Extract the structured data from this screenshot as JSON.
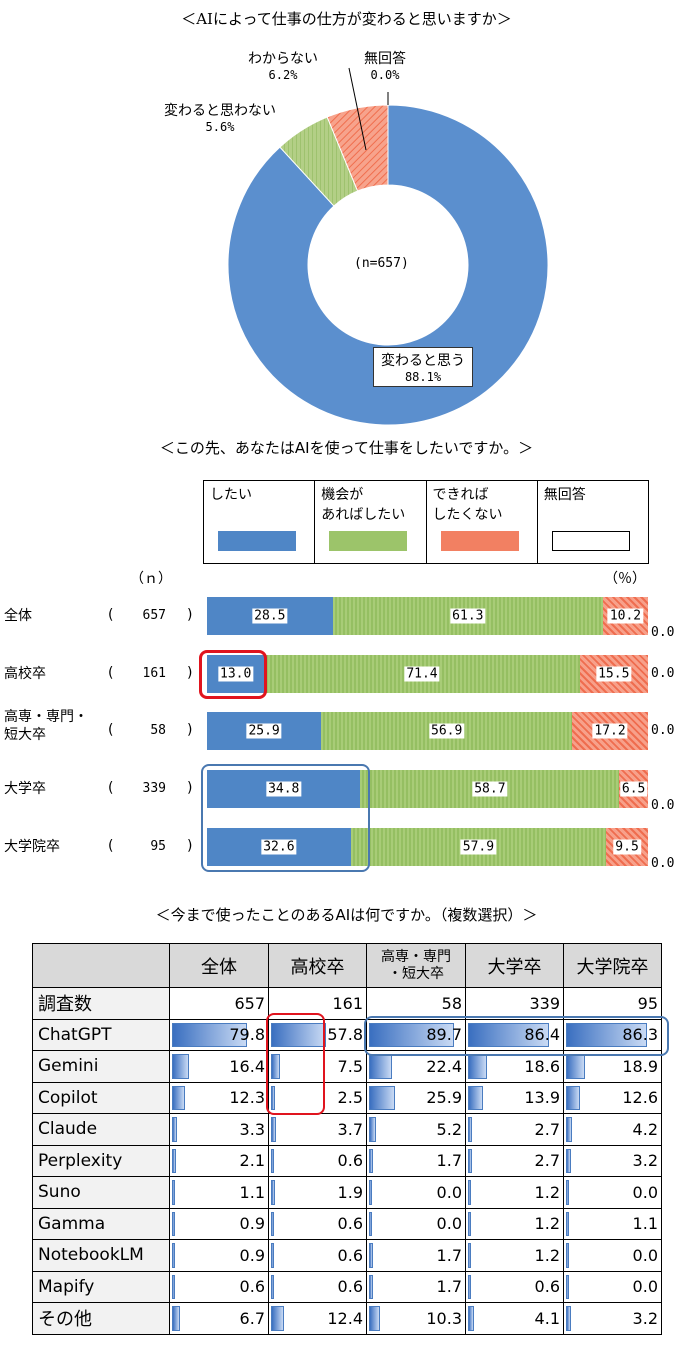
{
  "donut": {
    "title": "＜AIによって仕事の仕方が変わると思いますか＞",
    "center": "(n=657)",
    "slices": [
      {
        "label": "変わると思う",
        "pct": "88.1%",
        "value": 88.1,
        "color": "#5b8fce"
      },
      {
        "label": "変わると思わない",
        "pct": "5.6%",
        "value": 5.6,
        "color": "#a9c97a"
      },
      {
        "label": "わからない",
        "pct": "6.2%",
        "value": 6.2,
        "color": "#f28a6e"
      },
      {
        "label": "無回答",
        "pct": "0.0%",
        "value": 0.0,
        "color": "#ffffff"
      }
    ]
  },
  "stacked": {
    "title": "＜この先、あなたはAIを使って仕事をしたいですか。＞",
    "n_header": "（ｎ）",
    "pct_header": "（％）",
    "legend": [
      "したい",
      "機会があればしたい",
      "できればしたくない",
      "無回答"
    ],
    "legend_lines": [
      [
        "したい"
      ],
      [
        "機会が",
        "あればしたい"
      ],
      [
        "できれば",
        "したくない"
      ],
      [
        "無回答"
      ]
    ],
    "colors": [
      "#4f86c6",
      "#9cc46a",
      "#f28062",
      "#ffffff"
    ],
    "rows": [
      {
        "label": [
          "全体"
        ],
        "n": "657",
        "values": [
          28.5,
          61.3,
          10.2,
          0.0
        ],
        "texts": [
          "28.5",
          "61.3",
          "10.2",
          "0.0"
        ]
      },
      {
        "label": [
          "高校卒"
        ],
        "n": "161",
        "values": [
          13.0,
          71.4,
          15.5,
          0.0
        ],
        "texts": [
          "13.0",
          "71.4",
          "15.5",
          "0.0"
        ]
      },
      {
        "label": [
          "高専・専門・",
          "短大卒"
        ],
        "n": "58",
        "values": [
          25.9,
          56.9,
          17.2,
          0.0
        ],
        "texts": [
          "25.9",
          "56.9",
          "17.2",
          "0.0"
        ]
      },
      {
        "label": [
          "大学卒"
        ],
        "n": "339",
        "values": [
          34.8,
          58.7,
          6.5,
          0.0
        ],
        "texts": [
          "34.8",
          "58.7",
          "6.5",
          "0.0"
        ]
      },
      {
        "label": [
          "大学院卒"
        ],
        "n": "95",
        "values": [
          32.6,
          57.9,
          9.5,
          0.0
        ],
        "texts": [
          "32.6",
          "57.9",
          "9.5",
          "0.0"
        ]
      }
    ]
  },
  "table": {
    "title": "＜今まで使ったことのあるAIは何ですか。（複数選択）＞",
    "columns": [
      "全体",
      "高校卒",
      "高専・専門・短大卒",
      "大学卒",
      "大学院卒"
    ],
    "rows": [
      {
        "name": "調査数",
        "values": [
          "657",
          "161",
          "58",
          "339",
          "95"
        ]
      },
      {
        "name": "ChatGPT",
        "values": [
          "79.8",
          "57.8",
          "89.7",
          "86.4",
          "86.3"
        ]
      },
      {
        "name": "Gemini",
        "values": [
          "16.4",
          "7.5",
          "22.4",
          "18.6",
          "18.9"
        ]
      },
      {
        "name": "Copilot",
        "values": [
          "12.3",
          "2.5",
          "25.9",
          "13.9",
          "12.6"
        ]
      },
      {
        "name": "Claude",
        "values": [
          "3.3",
          "3.7",
          "5.2",
          "2.7",
          "4.2"
        ]
      },
      {
        "name": "Perplexity",
        "values": [
          "2.1",
          "0.6",
          "1.7",
          "2.7",
          "3.2"
        ]
      },
      {
        "name": "Suno",
        "values": [
          "1.1",
          "1.9",
          "0.0",
          "1.2",
          "0.0"
        ]
      },
      {
        "name": "Gamma",
        "values": [
          "0.9",
          "0.6",
          "0.0",
          "1.2",
          "1.1"
        ]
      },
      {
        "name": "NotebookLM",
        "values": [
          "0.9",
          "0.6",
          "1.7",
          "1.2",
          "0.0"
        ]
      },
      {
        "name": "Mapify",
        "values": [
          "0.6",
          "0.6",
          "1.7",
          "0.6",
          "0.0"
        ]
      },
      {
        "name": "その他",
        "values": [
          "6.7",
          "12.4",
          "10.3",
          "4.1",
          "3.2"
        ]
      }
    ]
  },
  "chart_data": [
    {
      "type": "pie",
      "title": "＜AIによって仕事の仕方が変わると思いますか＞",
      "categories": [
        "変わると思う",
        "変わると思わない",
        "わからない",
        "無回答"
      ],
      "values": [
        88.1,
        5.6,
        6.2,
        0.0
      ],
      "annotation": "(n=657)"
    },
    {
      "type": "bar",
      "title": "＜この先、あなたはAIを使って仕事をしたいですか。＞",
      "categories": [
        "全体",
        "高校卒",
        "高専・専門・短大卒",
        "大学卒",
        "大学院卒"
      ],
      "n": [
        657,
        161,
        58,
        339,
        95
      ],
      "series": [
        {
          "name": "したい",
          "values": [
            28.5,
            13.0,
            25.9,
            34.8,
            32.6
          ]
        },
        {
          "name": "機会があればしたい",
          "values": [
            61.3,
            71.4,
            56.9,
            58.7,
            57.9
          ]
        },
        {
          "name": "できればしたくない",
          "values": [
            10.2,
            15.5,
            17.2,
            6.5,
            9.5
          ]
        },
        {
          "name": "無回答",
          "values": [
            0.0,
            0.0,
            0.0,
            0.0,
            0.0
          ]
        }
      ],
      "unit": "%"
    },
    {
      "type": "table",
      "title": "＜今まで使ったことのあるAIは何ですか。（複数選択）＞",
      "columns": [
        "全体",
        "高校卒",
        "高専・専門・短大卒",
        "大学卒",
        "大学院卒"
      ],
      "rows": [
        "調査数",
        "ChatGPT",
        "Gemini",
        "Copilot",
        "Claude",
        "Perplexity",
        "Suno",
        "Gamma",
        "NotebookLM",
        "Mapify",
        "その他"
      ]
    }
  ]
}
